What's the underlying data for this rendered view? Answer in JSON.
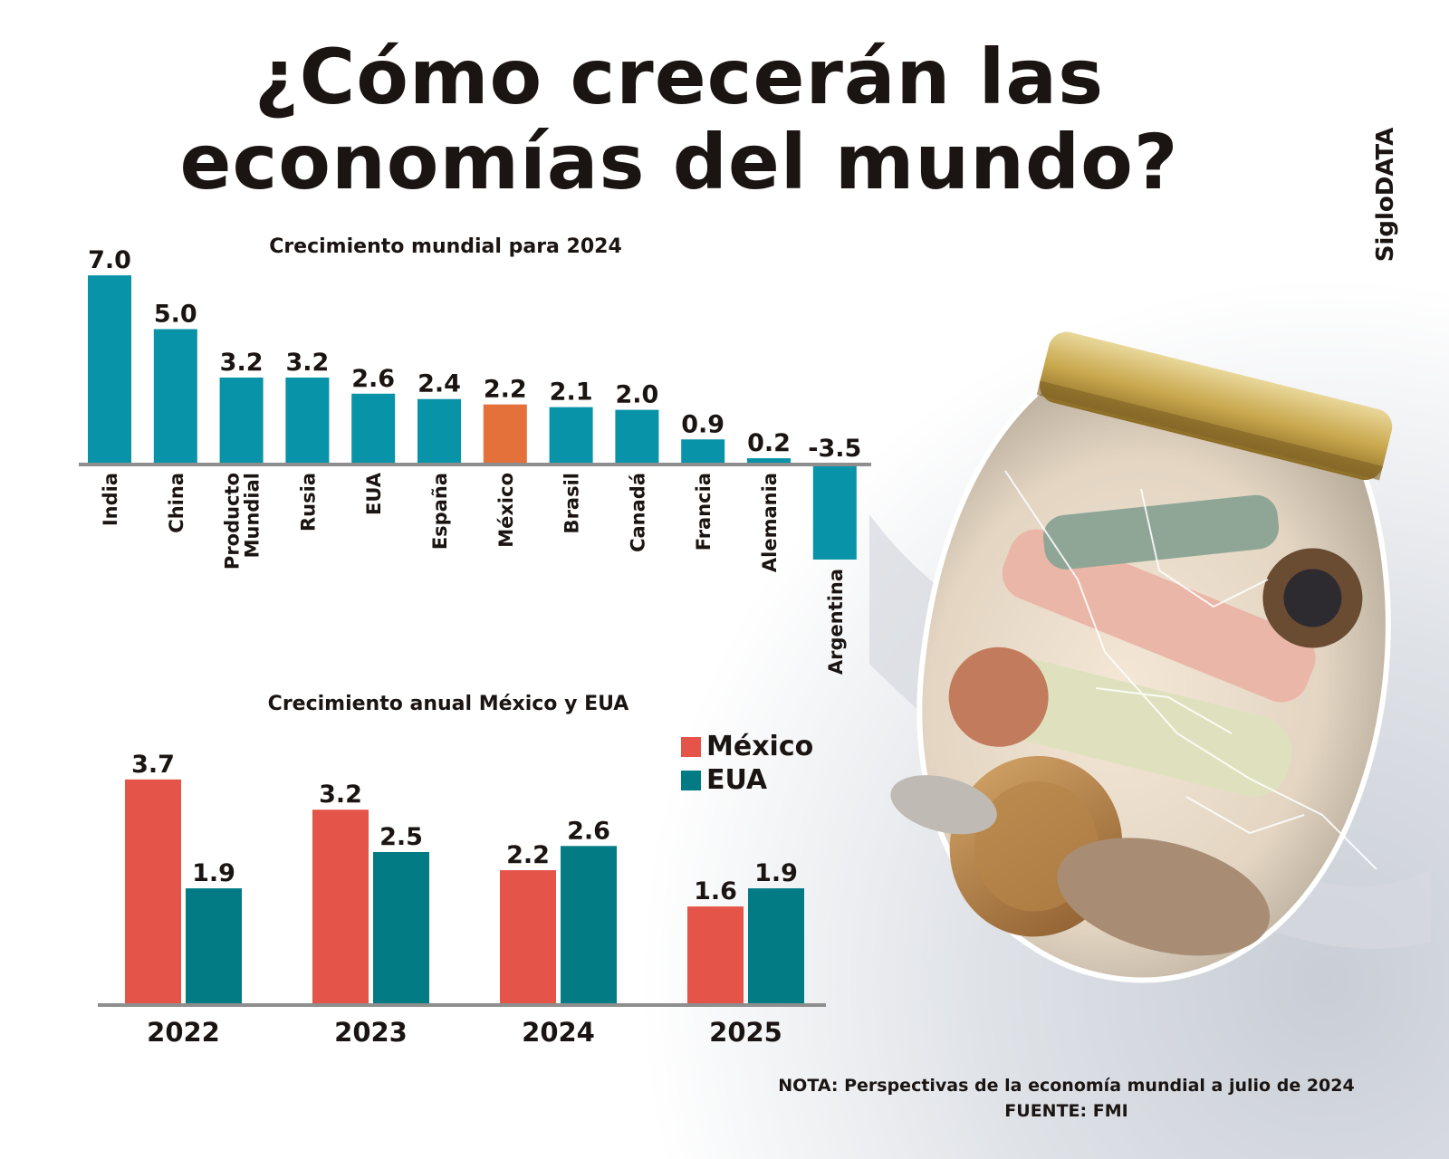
{
  "title_line1": "¿Cómo crecerán las",
  "title_line2": "economías del mundo?",
  "brand": "SigloDATA",
  "note": "NOTA: Perspectivas de la economía mundial a julio de 2024",
  "source": "FUENTE: FMI",
  "colors": {
    "teal": "#0893a8",
    "orange": "#e4703a",
    "mexico": "#e55448",
    "eua": "#027b85",
    "axis": "#8e8e8e",
    "text": "#1a1412"
  },
  "chart_data": [
    {
      "type": "bar",
      "title": "Crecimiento mundial para 2024",
      "xlabel": "",
      "ylabel": "",
      "grid": false,
      "categories": [
        "India",
        "China",
        "Producto Mundial",
        "Rusia",
        "EUA",
        "España",
        "México",
        "Brasil",
        "Canadá",
        "Francia",
        "Alemania",
        "Argentina"
      ],
      "category_lines": [
        [
          "India"
        ],
        [
          "China"
        ],
        [
          "Producto",
          "Mundial"
        ],
        [
          "Rusia"
        ],
        [
          "EUA"
        ],
        [
          "España"
        ],
        [
          "México"
        ],
        [
          "Brasil"
        ],
        [
          "Canadá"
        ],
        [
          "Francia"
        ],
        [
          "Alemania"
        ],
        [
          "Argentina"
        ]
      ],
      "values": [
        7.0,
        5.0,
        3.2,
        3.2,
        2.6,
        2.4,
        2.2,
        2.1,
        2.0,
        0.9,
        0.2,
        -3.5
      ],
      "labels": [
        "7.0",
        "5.0",
        "3.2",
        "3.2",
        "2.6",
        "2.4",
        "2.2",
        "2.1",
        "2.0",
        "0.9",
        "0.2",
        "-3.5"
      ],
      "highlight": "México",
      "ylim": [
        -3.5,
        7.0
      ]
    },
    {
      "type": "bar",
      "title": "Crecimiento anual México y EUA",
      "xlabel": "",
      "ylabel": "",
      "grid": false,
      "legend_position": "top-right",
      "categories": [
        "2022",
        "2023",
        "2024",
        "2025"
      ],
      "series": [
        {
          "name": "México",
          "values": [
            3.7,
            3.2,
            2.2,
            1.6
          ],
          "labels": [
            "3.7",
            "3.2",
            "2.2",
            "1.6"
          ]
        },
        {
          "name": "EUA",
          "values": [
            1.9,
            2.5,
            2.6,
            1.9
          ],
          "labels": [
            "1.9",
            "2.5",
            "2.6",
            "1.9"
          ]
        }
      ],
      "ylim": [
        0,
        3.7
      ]
    }
  ]
}
